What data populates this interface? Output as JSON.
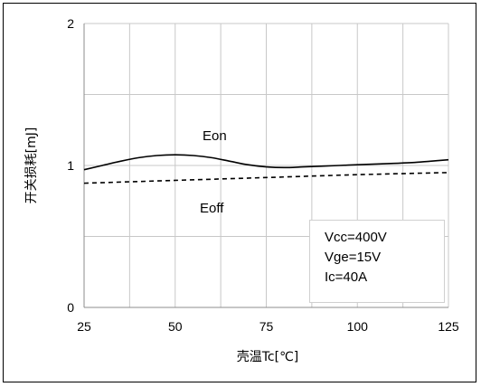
{
  "chart_data": {
    "type": "line",
    "xlabel": "壳温Tc[℃]",
    "ylabel": "开关损耗[mJ]",
    "xlim": [
      25,
      125
    ],
    "ylim": [
      0,
      2
    ],
    "x_ticks": [
      "25",
      "50",
      "75",
      "100",
      "125"
    ],
    "y_ticks": [
      "0",
      "1",
      "2"
    ],
    "grid": true,
    "series": [
      {
        "name": "Eon",
        "style": "solid",
        "x": [
          25,
          30,
          35,
          40,
          45,
          50,
          55,
          60,
          65,
          70,
          75,
          80,
          85,
          90,
          95,
          100,
          105,
          110,
          115,
          120,
          125
        ],
        "values": [
          0.97,
          1.0,
          1.03,
          1.055,
          1.07,
          1.075,
          1.07,
          1.055,
          1.03,
          1.005,
          0.99,
          0.985,
          0.99,
          0.995,
          1.0,
          1.005,
          1.01,
          1.015,
          1.02,
          1.03,
          1.04
        ]
      },
      {
        "name": "Eoff",
        "style": "dashed",
        "x": [
          25,
          50,
          75,
          100,
          125
        ],
        "values": [
          0.875,
          0.895,
          0.915,
          0.935,
          0.95
        ]
      }
    ],
    "annotations": [
      "Vcc=400V",
      "Vge=15V",
      "Ic=40A"
    ]
  }
}
